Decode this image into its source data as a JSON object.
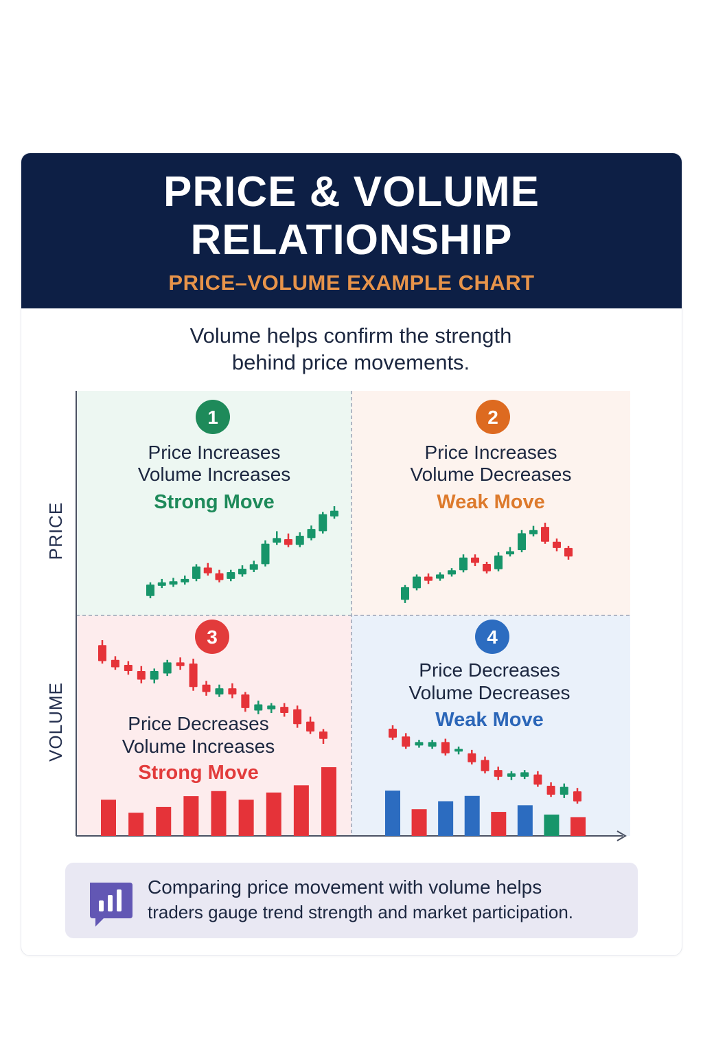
{
  "header": {
    "title_line1": "PRICE & VOLUME",
    "title_line2": "RELATIONSHIP",
    "subtitle": "PRICE–VOLUME EXAMPLE CHART"
  },
  "intro": {
    "line1": "Volume helps confirm the strength",
    "line2": "behind price movements."
  },
  "colors": {
    "header_bg": "#0d1f45",
    "accent_orange": "#e8944a",
    "up": "#17956a",
    "down": "#e53339",
    "blue": "#2c6cc0",
    "q1_bg": "#edf7f2",
    "q2_bg": "#fdf3ee",
    "q3_bg": "#fdeced",
    "q4_bg": "#eaf1fa"
  },
  "chart_data": {
    "type": "candlestick-quadrant",
    "ylabel_top": "PRICE",
    "ylabel_bottom": "VOLUME",
    "quadrants": [
      {
        "id": "q1",
        "number": "1",
        "line1": "Price Increases",
        "line2": "Volume Increases",
        "verdict": "Strong Move",
        "badge_color": "#1e8a5a",
        "verdict_color": "#1e8a5a",
        "candles": [
          {
            "o": 10,
            "c": 30,
            "h": 34,
            "l": 6
          },
          {
            "o": 28,
            "c": 34,
            "h": 40,
            "l": 24
          },
          {
            "o": 30,
            "c": 36,
            "h": 42,
            "l": 26
          },
          {
            "o": 34,
            "c": 40,
            "h": 46,
            "l": 30
          },
          {
            "o": 40,
            "c": 62,
            "h": 66,
            "l": 36
          },
          {
            "o": 60,
            "c": 50,
            "h": 68,
            "l": 46
          },
          {
            "o": 50,
            "c": 38,
            "h": 56,
            "l": 34
          },
          {
            "o": 40,
            "c": 52,
            "h": 56,
            "l": 36
          },
          {
            "o": 48,
            "c": 58,
            "h": 64,
            "l": 44
          },
          {
            "o": 56,
            "c": 66,
            "h": 72,
            "l": 52
          },
          {
            "o": 66,
            "c": 102,
            "h": 108,
            "l": 62
          },
          {
            "o": 104,
            "c": 112,
            "h": 124,
            "l": 100
          },
          {
            "o": 110,
            "c": 100,
            "h": 120,
            "l": 96
          },
          {
            "o": 100,
            "c": 116,
            "h": 122,
            "l": 96
          },
          {
            "o": 112,
            "c": 128,
            "h": 134,
            "l": 108
          },
          {
            "o": 124,
            "c": 154,
            "h": 158,
            "l": 120
          },
          {
            "o": 150,
            "c": 160,
            "h": 168,
            "l": 146
          }
        ]
      },
      {
        "id": "q2",
        "number": "2",
        "line1": "Price Increases",
        "line2": "Volume Decreases",
        "verdict": "Weak Move",
        "badge_color": "#dd6a20",
        "verdict_color": "#dd7a2c",
        "candles": [
          {
            "o": 10,
            "c": 34,
            "h": 38,
            "l": 4
          },
          {
            "o": 32,
            "c": 54,
            "h": 58,
            "l": 28
          },
          {
            "o": 54,
            "c": 46,
            "h": 60,
            "l": 40
          },
          {
            "o": 50,
            "c": 58,
            "h": 62,
            "l": 46
          },
          {
            "o": 58,
            "c": 66,
            "h": 70,
            "l": 54
          },
          {
            "o": 66,
            "c": 90,
            "h": 96,
            "l": 62
          },
          {
            "o": 90,
            "c": 80,
            "h": 96,
            "l": 74
          },
          {
            "o": 78,
            "c": 64,
            "h": 82,
            "l": 60
          },
          {
            "o": 68,
            "c": 94,
            "h": 100,
            "l": 64
          },
          {
            "o": 96,
            "c": 102,
            "h": 110,
            "l": 92
          },
          {
            "o": 104,
            "c": 136,
            "h": 142,
            "l": 100
          },
          {
            "o": 134,
            "c": 142,
            "h": 150,
            "l": 130
          },
          {
            "o": 148,
            "c": 120,
            "h": 156,
            "l": 116
          },
          {
            "o": 120,
            "c": 108,
            "h": 126,
            "l": 102
          },
          {
            "o": 108,
            "c": 92,
            "h": 112,
            "l": 86
          }
        ]
      },
      {
        "id": "q3",
        "number": "3",
        "line1": "Price Decreases",
        "line2": "Volume Increases",
        "verdict": "Strong Move",
        "badge_color": "#e23b3b",
        "verdict_color": "#e23b3b",
        "candles": [
          {
            "o": 160,
            "c": 134,
            "h": 168,
            "l": 130
          },
          {
            "o": 136,
            "c": 124,
            "h": 142,
            "l": 120
          },
          {
            "o": 128,
            "c": 118,
            "h": 134,
            "l": 112
          },
          {
            "o": 118,
            "c": 104,
            "h": 126,
            "l": 98
          },
          {
            "o": 104,
            "c": 118,
            "h": 122,
            "l": 98
          },
          {
            "o": 114,
            "c": 132,
            "h": 136,
            "l": 110
          },
          {
            "o": 132,
            "c": 126,
            "h": 140,
            "l": 120
          },
          {
            "o": 130,
            "c": 92,
            "h": 138,
            "l": 86
          },
          {
            "o": 96,
            "c": 84,
            "h": 102,
            "l": 78
          },
          {
            "o": 80,
            "c": 90,
            "h": 96,
            "l": 76
          },
          {
            "o": 90,
            "c": 80,
            "h": 98,
            "l": 74
          },
          {
            "o": 80,
            "c": 58,
            "h": 84,
            "l": 52
          },
          {
            "o": 54,
            "c": 64,
            "h": 70,
            "l": 48
          },
          {
            "o": 56,
            "c": 62,
            "h": 66,
            "l": 50
          },
          {
            "o": 60,
            "c": 50,
            "h": 66,
            "l": 44
          },
          {
            "o": 56,
            "c": 32,
            "h": 62,
            "l": 26
          },
          {
            "o": 36,
            "c": 20,
            "h": 44,
            "l": 16
          },
          {
            "o": 20,
            "c": 8,
            "h": 24,
            "l": 0
          }
        ],
        "volume": [
          {
            "v": 50,
            "color": "#e53339"
          },
          {
            "v": 32,
            "color": "#e53339"
          },
          {
            "v": 40,
            "color": "#e53339"
          },
          {
            "v": 55,
            "color": "#e53339"
          },
          {
            "v": 62,
            "color": "#e53339"
          },
          {
            "v": 50,
            "color": "#e53339"
          },
          {
            "v": 60,
            "color": "#e53339"
          },
          {
            "v": 70,
            "color": "#e53339"
          },
          {
            "v": 95,
            "color": "#e53339"
          }
        ]
      },
      {
        "id": "q4",
        "number": "4",
        "line1": "Price Decreases",
        "line2": "Volume Decreases",
        "verdict": "Weak Move",
        "badge_color": "#2c6cc0",
        "verdict_color": "#2b66b8",
        "candles": [
          {
            "o": 124,
            "c": 108,
            "h": 130,
            "l": 104
          },
          {
            "o": 110,
            "c": 92,
            "h": 116,
            "l": 88
          },
          {
            "o": 94,
            "c": 100,
            "h": 104,
            "l": 90
          },
          {
            "o": 92,
            "c": 100,
            "h": 104,
            "l": 88
          },
          {
            "o": 100,
            "c": 80,
            "h": 106,
            "l": 76
          },
          {
            "o": 84,
            "c": 88,
            "h": 92,
            "l": 78
          },
          {
            "o": 80,
            "c": 64,
            "h": 86,
            "l": 60
          },
          {
            "o": 68,
            "c": 48,
            "h": 74,
            "l": 44
          },
          {
            "o": 50,
            "c": 38,
            "h": 56,
            "l": 32
          },
          {
            "o": 38,
            "c": 44,
            "h": 48,
            "l": 32
          },
          {
            "o": 38,
            "c": 46,
            "h": 50,
            "l": 34
          },
          {
            "o": 42,
            "c": 24,
            "h": 48,
            "l": 20
          },
          {
            "o": 22,
            "c": 6,
            "h": 28,
            "l": 2
          },
          {
            "o": 6,
            "c": 20,
            "h": 26,
            "l": 0
          },
          {
            "o": 12,
            "c": -6,
            "h": 18,
            "l": -10
          }
        ],
        "volume": [
          {
            "v": 68,
            "color": "#2c6cc0"
          },
          {
            "v": 40,
            "color": "#e53339"
          },
          {
            "v": 52,
            "color": "#2c6cc0"
          },
          {
            "v": 60,
            "color": "#2c6cc0"
          },
          {
            "v": 36,
            "color": "#e53339"
          },
          {
            "v": 46,
            "color": "#2c6cc0"
          },
          {
            "v": 32,
            "color": "#17956a"
          },
          {
            "v": 28,
            "color": "#e53339"
          }
        ]
      }
    ]
  },
  "note": {
    "icon": "chart-bubble-icon",
    "line1": "Comparing price movement with volume helps",
    "line2": "traders gauge trend strength and market participation."
  }
}
